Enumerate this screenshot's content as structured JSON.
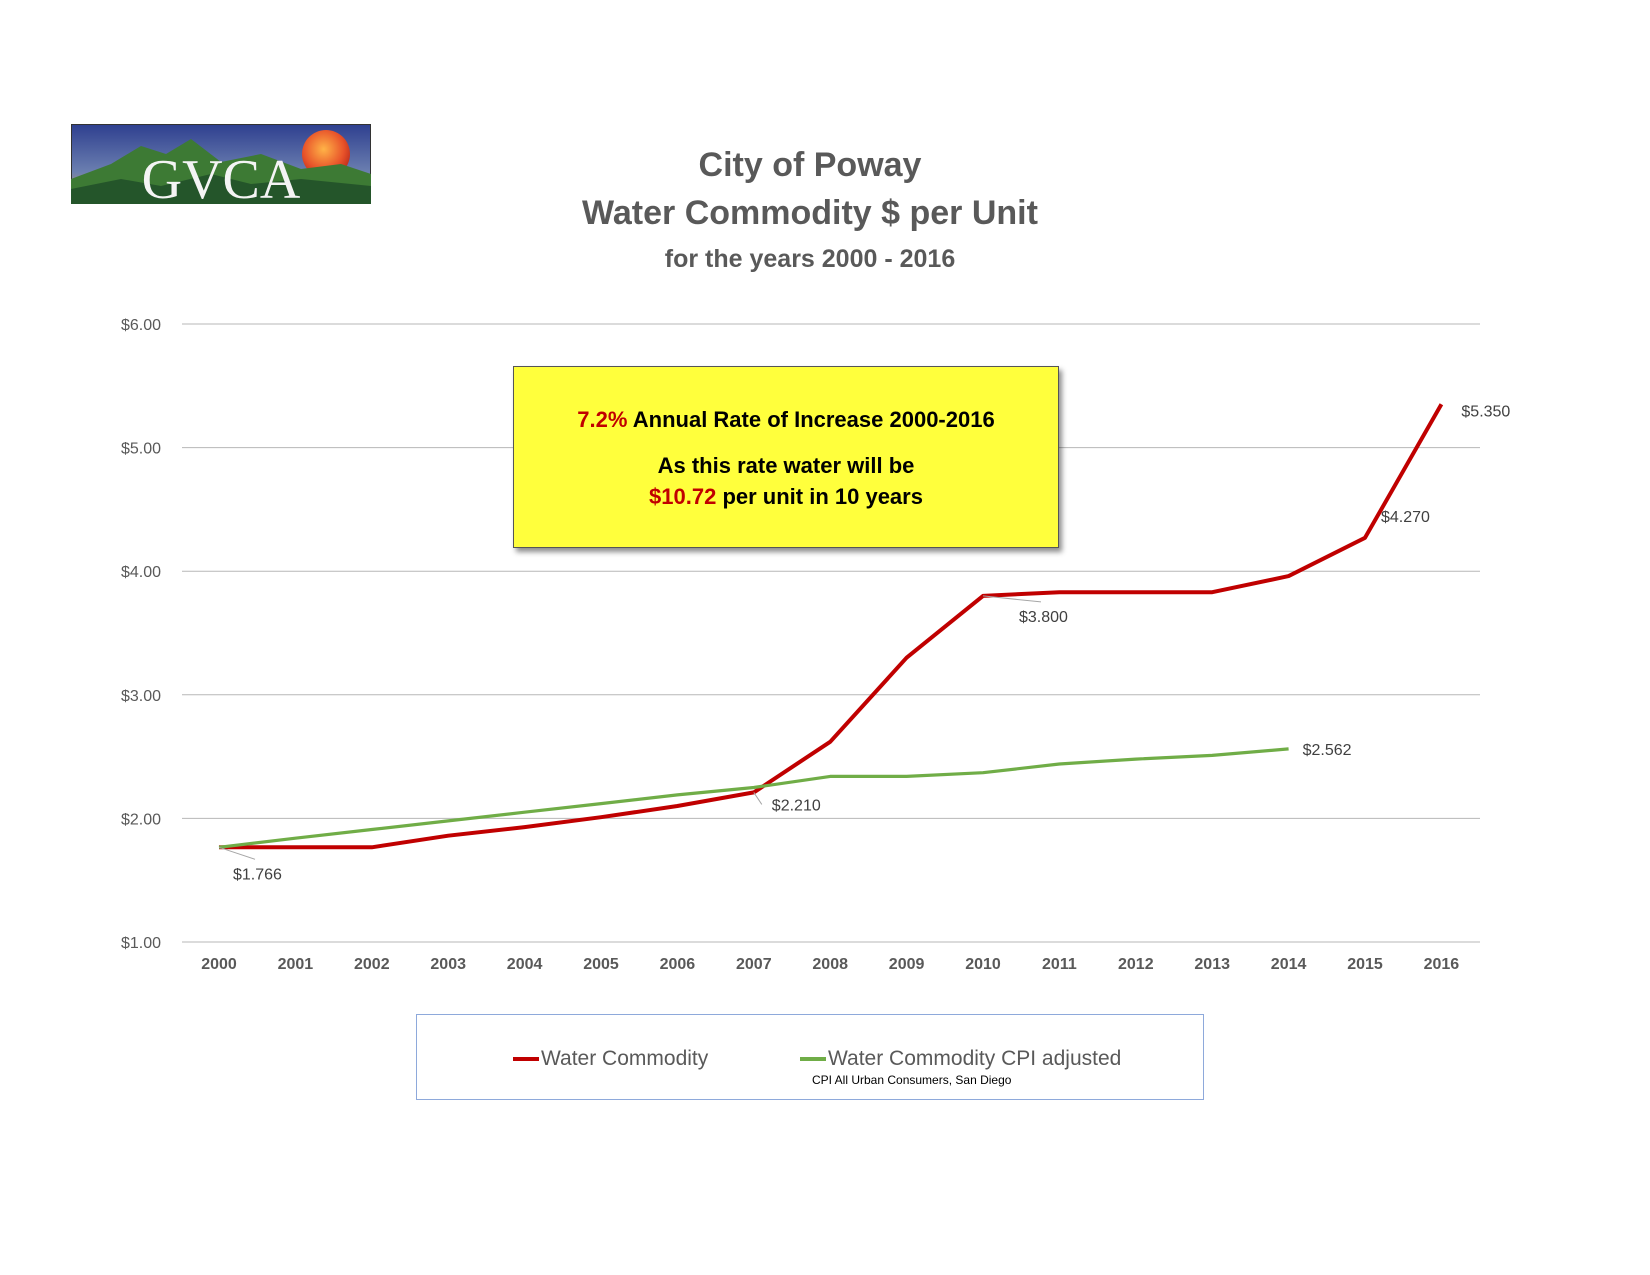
{
  "logo": {
    "text": "GVCA"
  },
  "title": {
    "line1": "City of Poway",
    "line2": "Water Commodity $ per Unit",
    "line3": "for the years 2000 - 2016"
  },
  "callout": {
    "rate": "7.2%",
    "line1_rest": " Annual Rate of Increase 2000-2016",
    "line2": "As this rate water will be",
    "projection": "$10.72",
    "line3_rest": " per unit in 10 years"
  },
  "legend": {
    "items": [
      {
        "label": "Water Commodity",
        "color": "#c00000"
      },
      {
        "label": "Water Commodity CPI adjusted",
        "color": "#70ad47"
      }
    ],
    "note": "CPI All Urban Consumers, San Diego"
  },
  "chart_data": {
    "type": "line",
    "x": [
      "2000",
      "2001",
      "2002",
      "2003",
      "2004",
      "2005",
      "2006",
      "2007",
      "2008",
      "2009",
      "2010",
      "2011",
      "2012",
      "2013",
      "2014",
      "2015",
      "2016"
    ],
    "y_ticks": [
      "$1.00",
      "$2.00",
      "$3.00",
      "$4.00",
      "$5.00",
      "$6.00"
    ],
    "ylim": [
      1,
      6
    ],
    "grid": true,
    "legend_position": "bottom",
    "series": [
      {
        "name": "Water Commodity",
        "color": "#c00000",
        "values": [
          1.766,
          1.766,
          1.766,
          1.86,
          1.93,
          2.01,
          2.1,
          2.21,
          2.62,
          3.3,
          3.8,
          3.83,
          3.83,
          3.83,
          3.96,
          4.27,
          5.35
        ]
      },
      {
        "name": "Water Commodity CPI adjusted",
        "color": "#70ad47",
        "values": [
          1.766,
          1.84,
          1.91,
          1.98,
          2.05,
          2.12,
          2.19,
          2.25,
          2.34,
          2.34,
          2.37,
          2.44,
          2.48,
          2.51,
          2.562,
          null,
          null
        ]
      }
    ],
    "data_labels": [
      {
        "series": 0,
        "index": 0,
        "text": "$1.766"
      },
      {
        "series": 0,
        "index": 7,
        "text": "$2.210"
      },
      {
        "series": 0,
        "index": 10,
        "text": "$3.800"
      },
      {
        "series": 0,
        "index": 15,
        "text": "$4.270"
      },
      {
        "series": 0,
        "index": 16,
        "text": "$5.350"
      },
      {
        "series": 1,
        "index": 14,
        "text": "$2.562"
      }
    ]
  }
}
